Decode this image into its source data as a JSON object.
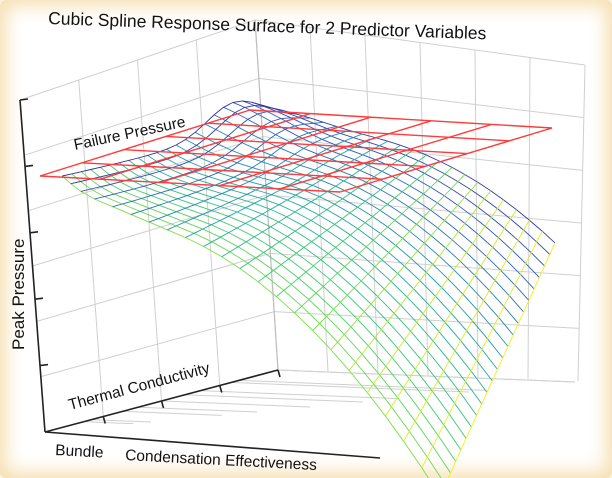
{
  "chart_data": {
    "type": "surface",
    "title": "Cubic Spline Response Surface for 2 Predictor Variables",
    "zlabel": "Peak Pressure",
    "ylabel": "Thermal Conductivity",
    "xlabel_part1": "Bundle",
    "xlabel_part2": "Condensation Effectiveness",
    "plane_label": "Failure Pressure",
    "plane_color": "#ff3b3b",
    "grid": true,
    "colormap": [
      "#3a1f8f",
      "#2f5fbf",
      "#1fa3a8",
      "#3fcf6a",
      "#b9ec2a",
      "#f2f01a"
    ]
  }
}
